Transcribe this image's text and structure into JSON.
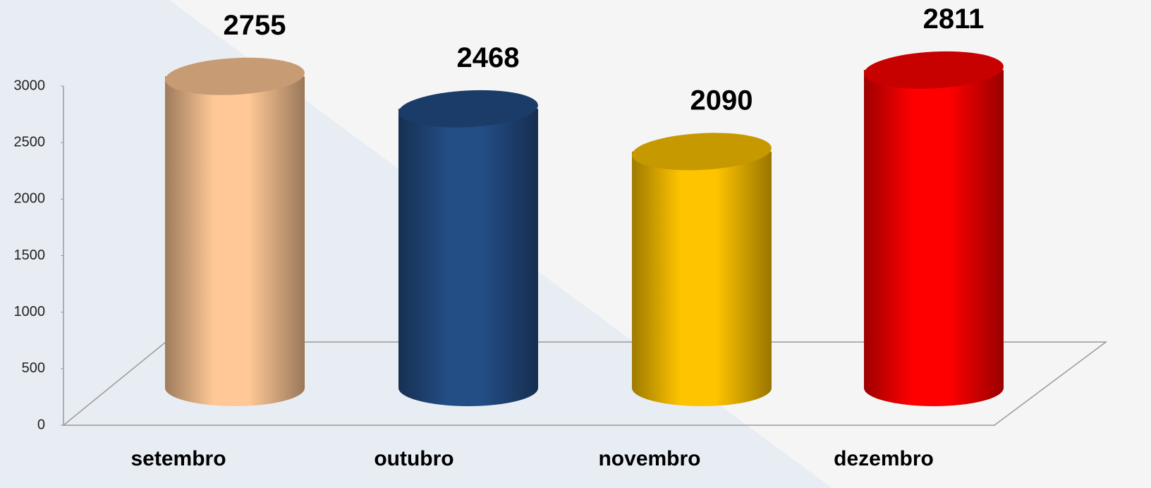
{
  "chart_data": {
    "type": "bar3d_cylinder",
    "categories": [
      "setembro",
      "outubro",
      "novembro",
      "dezembro"
    ],
    "values": [
      2755,
      2468,
      2090,
      2811
    ],
    "colors": [
      "#FFC896",
      "#234D85",
      "#FFC400",
      "#FF0000"
    ],
    "ylim": [
      0,
      3000
    ],
    "yticks": [
      0,
      500,
      1000,
      1500,
      2000,
      2500,
      3000
    ],
    "grid": false
  }
}
